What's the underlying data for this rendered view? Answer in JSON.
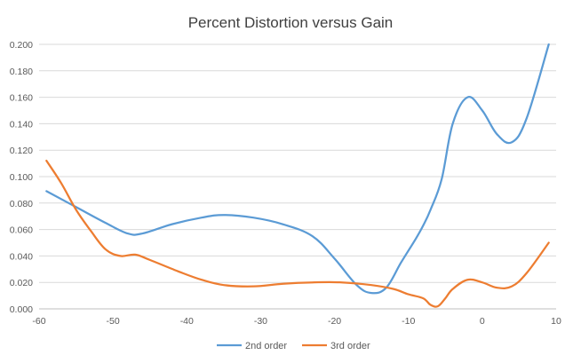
{
  "chart_data": {
    "type": "line",
    "title": "Percent Distortion versus Gain",
    "xlabel": "",
    "ylabel": "",
    "xlim": [
      -60,
      10
    ],
    "ylim": [
      0,
      0.2
    ],
    "x_ticks": [
      "-60",
      "-50",
      "-40",
      "-30",
      "-20",
      "-10",
      "0",
      "10"
    ],
    "y_ticks": [
      "0.000",
      "0.020",
      "0.040",
      "0.060",
      "0.080",
      "0.100",
      "0.120",
      "0.140",
      "0.160",
      "0.180",
      "0.200"
    ],
    "grid": true,
    "legend_position": "bottom",
    "series": [
      {
        "name": "2nd order",
        "color": "#5B9BD5",
        "x": [
          -59,
          -55,
          -51,
          -48,
          -46,
          -42,
          -38,
          -35,
          -31,
          -27,
          -23,
          -20,
          -17,
          -15,
          -13,
          -11,
          -9,
          -8,
          -7,
          -5.5,
          -4,
          -2,
          0,
          2,
          4,
          6,
          9
        ],
        "y": [
          0.089,
          0.077,
          0.065,
          0.057,
          0.057,
          0.064,
          0.069,
          0.071,
          0.069,
          0.064,
          0.055,
          0.038,
          0.018,
          0.012,
          0.016,
          0.035,
          0.053,
          0.063,
          0.075,
          0.098,
          0.14,
          0.16,
          0.15,
          0.132,
          0.126,
          0.144,
          0.2
        ]
      },
      {
        "name": "3rd order",
        "color": "#ED7D31",
        "x": [
          -59,
          -57,
          -55,
          -53,
          -51,
          -49,
          -47,
          -45,
          -41,
          -38,
          -35,
          -31,
          -27,
          -23,
          -19,
          -15,
          -12,
          -10,
          -8,
          -7,
          -6,
          -5,
          -4,
          -2,
          0,
          2,
          4,
          6,
          9
        ],
        "y": [
          0.112,
          0.095,
          0.075,
          0.059,
          0.045,
          0.04,
          0.041,
          0.037,
          0.028,
          0.022,
          0.018,
          0.017,
          0.019,
          0.02,
          0.02,
          0.018,
          0.015,
          0.011,
          0.008,
          0.003,
          0.002,
          0.008,
          0.015,
          0.022,
          0.02,
          0.016,
          0.017,
          0.027,
          0.05
        ]
      }
    ]
  }
}
